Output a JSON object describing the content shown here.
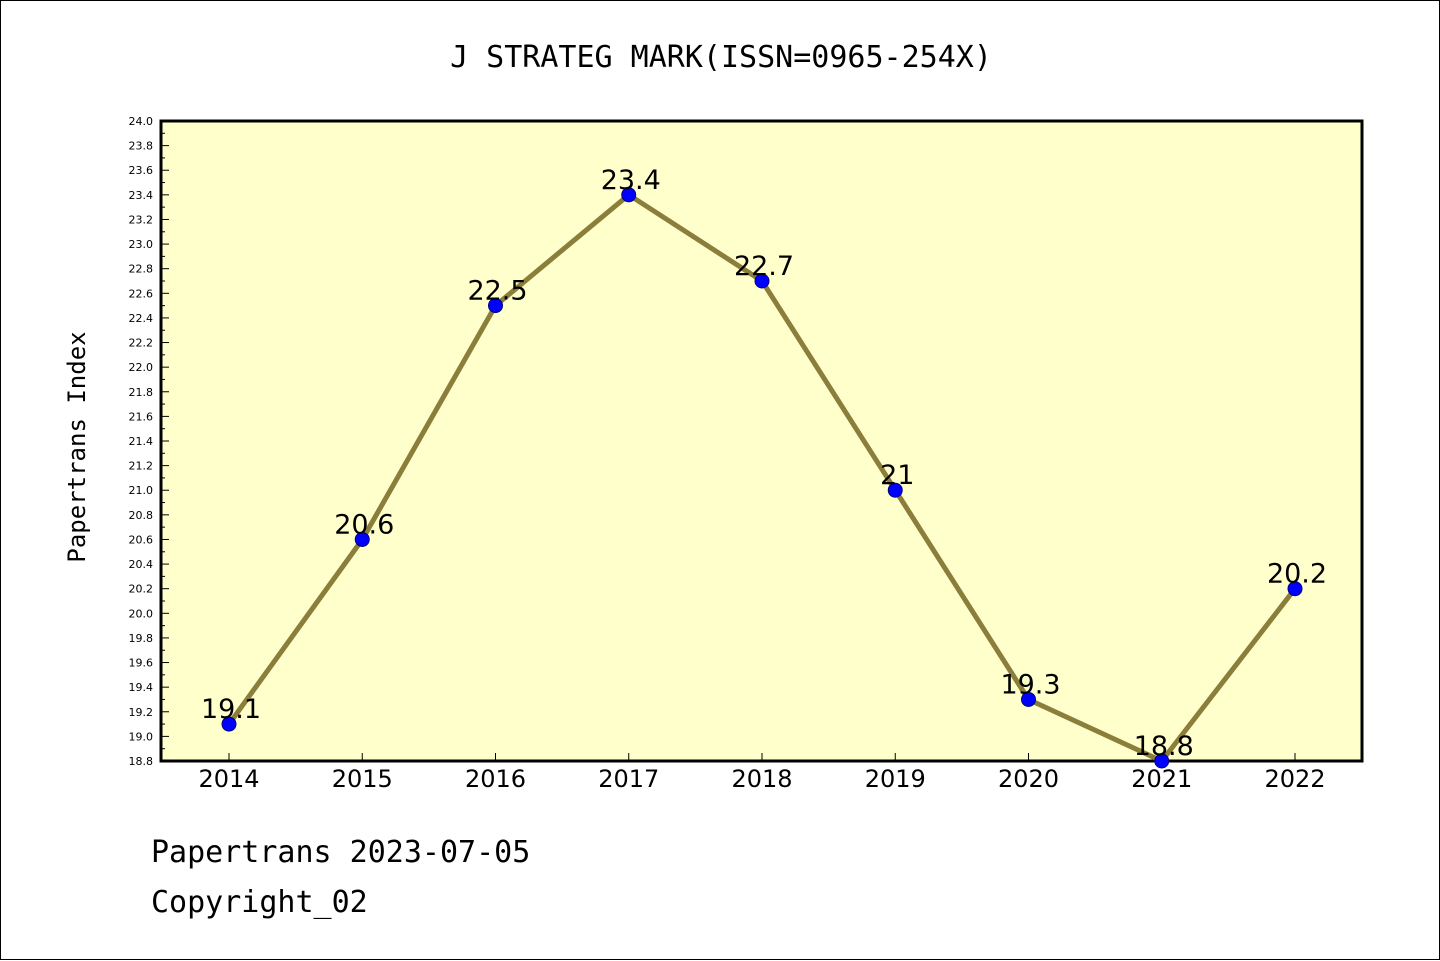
{
  "chart_data": {
    "type": "line",
    "title": "J STRATEG MARK(ISSN=0965-254X)",
    "xlabel": "",
    "ylabel": "Papertrans Index",
    "categories": [
      "2014",
      "2015",
      "2016",
      "2017",
      "2018",
      "2019",
      "2020",
      "2021",
      "2022"
    ],
    "values": [
      19.1,
      20.6,
      22.5,
      23.4,
      22.7,
      21.0,
      19.3,
      18.8,
      20.2
    ],
    "data_labels": [
      "19.1",
      "20.6",
      "22.5",
      "23.4",
      "22.7",
      "21",
      "19.3",
      "18.8",
      "20.2"
    ],
    "ylim": [
      18.8,
      24.0
    ],
    "ytick_step": 0.2,
    "grid": false,
    "legend": "none",
    "colors": {
      "plot_background": "#ffffcc",
      "line": "#8b7d3a",
      "marker": "#0000ff",
      "marker_edge": "#000080"
    }
  },
  "footer": {
    "line1": "Papertrans 2023-07-05",
    "line2": "Copyright_02"
  }
}
